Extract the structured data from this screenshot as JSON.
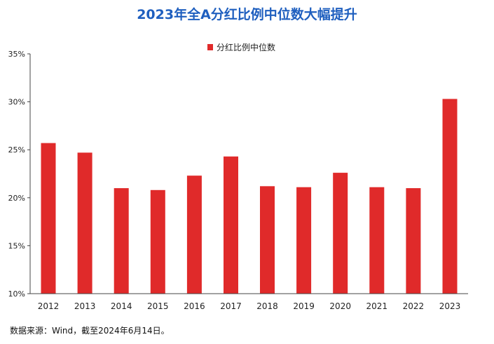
{
  "chart_data": {
    "type": "bar",
    "title": "2023年全A分红比例中位数大幅提升",
    "categories": [
      "2012",
      "2013",
      "2014",
      "2015",
      "2016",
      "2017",
      "2018",
      "2019",
      "2020",
      "2021",
      "2022",
      "2023"
    ],
    "series": [
      {
        "name": "分红比例中位数",
        "values": [
          25.7,
          24.7,
          21.0,
          20.8,
          22.3,
          24.3,
          21.2,
          21.1,
          22.6,
          21.1,
          21.0,
          30.3
        ],
        "color": "#e02a2a"
      }
    ],
    "yticks": [
      "10%",
      "15%",
      "20%",
      "25%",
      "30%",
      "35%"
    ],
    "ylim": [
      10,
      35
    ],
    "ytick_values": [
      10,
      15,
      20,
      25,
      30,
      35
    ],
    "grid": false,
    "legend_position": "top-center",
    "title_color": "#1f5fbf"
  },
  "source": "数据来源：Wind，截至2024年6月14日。"
}
